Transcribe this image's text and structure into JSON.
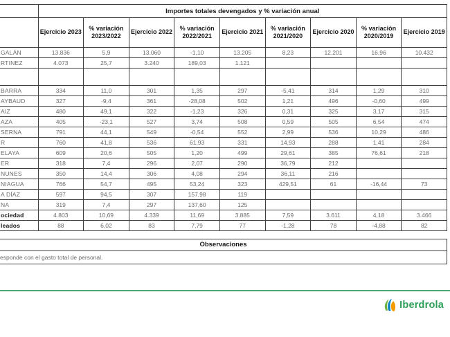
{
  "table": {
    "merged_header": "Importes totales devengados y % variación anual",
    "columns": [
      "Ejercicio 2023",
      "% variación 2023/2022",
      "Ejercicio 2022",
      "% variación 2022/2021",
      "Ejercicio 2021",
      "% variación 2021/2020",
      "Ejercicio 2020",
      "% variación 2020/2019",
      "Ejercicio 2019"
    ],
    "rows": [
      {
        "name": "GALÁN",
        "bold": false,
        "spacer": false,
        "values": [
          "13.836",
          "5,9",
          "13.060",
          "-1,10",
          "13.205",
          "8,23",
          "12.201",
          "16,96",
          "10.432"
        ]
      },
      {
        "name": "RTINEZ",
        "bold": false,
        "spacer": false,
        "values": [
          "4.073",
          "25,7",
          "3.240",
          "189,03",
          "1.121",
          "",
          "",
          "",
          ""
        ]
      },
      {
        "name": "",
        "bold": false,
        "spacer": true,
        "values": [
          "",
          "",
          "",
          "",
          "",
          "",
          "",
          "",
          ""
        ]
      },
      {
        "name": "BARRA",
        "bold": false,
        "spacer": false,
        "values": [
          "334",
          "11,0",
          "301",
          "1,35",
          "297",
          "-5,41",
          "314",
          "1,29",
          "310"
        ]
      },
      {
        "name": "AYBAUD",
        "bold": false,
        "spacer": false,
        "values": [
          "327",
          "-9,4",
          "361",
          "-28,08",
          "502",
          "1,21",
          "496",
          "-0,60",
          "499"
        ]
      },
      {
        "name": "AIZ",
        "bold": false,
        "spacer": false,
        "values": [
          "480",
          "49,1",
          "322",
          "-1,23",
          "326",
          "0,31",
          "325",
          "3,17",
          "315"
        ]
      },
      {
        "name": "AZA",
        "bold": false,
        "spacer": false,
        "values": [
          "405",
          "-23,1",
          "527",
          "3,74",
          "508",
          "0,59",
          "505",
          "6,54",
          "474"
        ]
      },
      {
        "name": "SERNA",
        "bold": false,
        "spacer": false,
        "values": [
          "791",
          "44,1",
          "549",
          "-0,54",
          "552",
          "2,99",
          "536",
          "10,29",
          "486"
        ]
      },
      {
        "name": "R",
        "bold": false,
        "spacer": false,
        "values": [
          "760",
          "41,8",
          "536",
          "61,93",
          "331",
          "14,93",
          "288",
          "1,41",
          "284"
        ]
      },
      {
        "name": "ELAYA",
        "bold": false,
        "spacer": false,
        "values": [
          "609",
          "20,6",
          "505",
          "1,20",
          "499",
          "29,61",
          "385",
          "76,61",
          "218"
        ]
      },
      {
        "name": "ER",
        "bold": false,
        "spacer": false,
        "values": [
          "318",
          "7,4",
          "296",
          "2,07",
          "290",
          "36,79",
          "212",
          "",
          ""
        ]
      },
      {
        "name": "NUNES",
        "bold": false,
        "spacer": false,
        "values": [
          "350",
          "14,4",
          "306",
          "4,08",
          "294",
          "36,11",
          "216",
          "",
          ""
        ]
      },
      {
        "name": "NIAGUA",
        "bold": false,
        "spacer": false,
        "values": [
          "766",
          "54,7",
          "495",
          "53,24",
          "323",
          "429,51",
          "61",
          "-16,44",
          "73"
        ]
      },
      {
        "name": "A DÍAZ",
        "bold": false,
        "spacer": false,
        "values": [
          "597",
          "94,5",
          "307",
          "157,98",
          "119",
          "",
          "",
          "",
          ""
        ]
      },
      {
        "name": "NA",
        "bold": false,
        "spacer": false,
        "values": [
          "319",
          "7,4",
          "297",
          "137,60",
          "125",
          "",
          "",
          "",
          ""
        ]
      },
      {
        "name": "ociedad",
        "bold": true,
        "spacer": false,
        "values": [
          "4.803",
          "10,69",
          "4.339",
          "11,69",
          "3.885",
          "7,59",
          "3.611",
          "4,18",
          "3.466"
        ]
      },
      {
        "name": "leados",
        "bold": true,
        "spacer": false,
        "values": [
          "88",
          "6,02",
          "83",
          "7,79",
          "77",
          "-1,28",
          "78",
          "-4,88",
          "82"
        ]
      }
    ]
  },
  "observations": {
    "title": "Observaciones",
    "text": "esponde con el gasto total de personal."
  },
  "footer": {
    "divider_color": "#4ea672",
    "logo_text": "Iberdrola",
    "logo_text_color": "#2c9f57",
    "logo_leaf_colors": [
      "#6db33f",
      "#0081c6",
      "#f49b00"
    ]
  },
  "colors": {
    "table_border": "#3f3f3f",
    "header_text": "#1a1a1a",
    "value_text": "#6b6b6b"
  }
}
